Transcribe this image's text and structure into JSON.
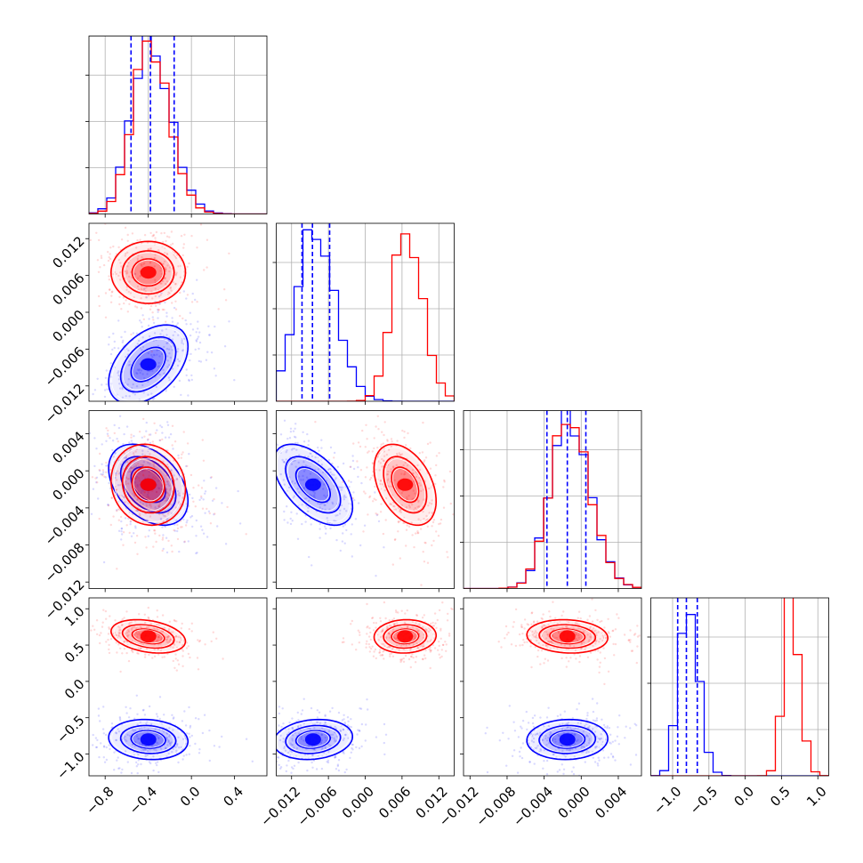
{
  "chart_data": {
    "type": "corner",
    "title": "",
    "parameters": [
      {
        "range": [
          -0.95,
          0.7
        ],
        "ticks": [
          -0.8,
          -0.4,
          0.0,
          0.4
        ],
        "tick_labels": [
          "−0.8",
          "−0.4",
          "0.0",
          "0.4"
        ]
      },
      {
        "range": [
          -0.0145,
          0.0145
        ],
        "ticks": [
          -0.012,
          -0.006,
          0.0,
          0.006,
          0.012
        ],
        "tick_labels": [
          "−0.012",
          "−0.006",
          "0.000",
          "0.006",
          "0.012"
        ]
      },
      {
        "range": [
          -0.0127,
          0.0065
        ],
        "ticks": [
          -0.012,
          -0.008,
          -0.004,
          0.0,
          0.004
        ],
        "tick_labels": [
          "−0.012",
          "−0.008",
          "−0.004",
          "0.000",
          "0.004"
        ]
      },
      {
        "range": [
          -1.3,
          1.15
        ],
        "ticks": [
          -1.0,
          -0.5,
          0.0,
          0.5,
          1.0
        ],
        "tick_labels": [
          "−1.0",
          "−0.5",
          "0.0",
          "0.5",
          "1.0"
        ]
      }
    ],
    "series": [
      {
        "color": "#0000ff",
        "mean": [
          -0.4,
          -0.0085,
          -0.0015,
          -0.8
        ],
        "std": [
          0.16,
          0.0028,
          0.0019,
          0.12
        ],
        "corr": {
          "0-1": 0.45,
          "0-2": -0.4,
          "0-3": -0.1,
          "1-2": -0.55,
          "1-3": 0.15,
          "2-3": 0.05
        }
      },
      {
        "color": "#ff0000",
        "mean": [
          -0.4,
          0.0065,
          -0.0015,
          0.62
        ],
        "std": [
          0.15,
          0.0022,
          0.0019,
          0.1
        ],
        "corr": {
          "0-1": 0.0,
          "0-2": -0.1,
          "0-3": -0.3,
          "1-2": -0.4,
          "1-3": 0.05,
          "2-3": -0.1
        }
      }
    ],
    "quantile_lines": [
      {
        "param": 0,
        "color": "#0000ff",
        "values": [
          -0.56,
          -0.38,
          -0.16
        ]
      },
      {
        "param": 1,
        "color": "#0000ff",
        "values": [
          -0.0103,
          -0.0086,
          -0.0058
        ]
      },
      {
        "param": 2,
        "color": "#0000ff",
        "values": [
          -0.0037,
          -0.0015,
          0.0005
        ]
      },
      {
        "param": 3,
        "color": "#0000ff",
        "values": [
          -0.93,
          -0.81,
          -0.66
        ]
      }
    ],
    "grid": true,
    "contour_levels_sigma": [
      1,
      1.6,
      2.3
    ]
  }
}
